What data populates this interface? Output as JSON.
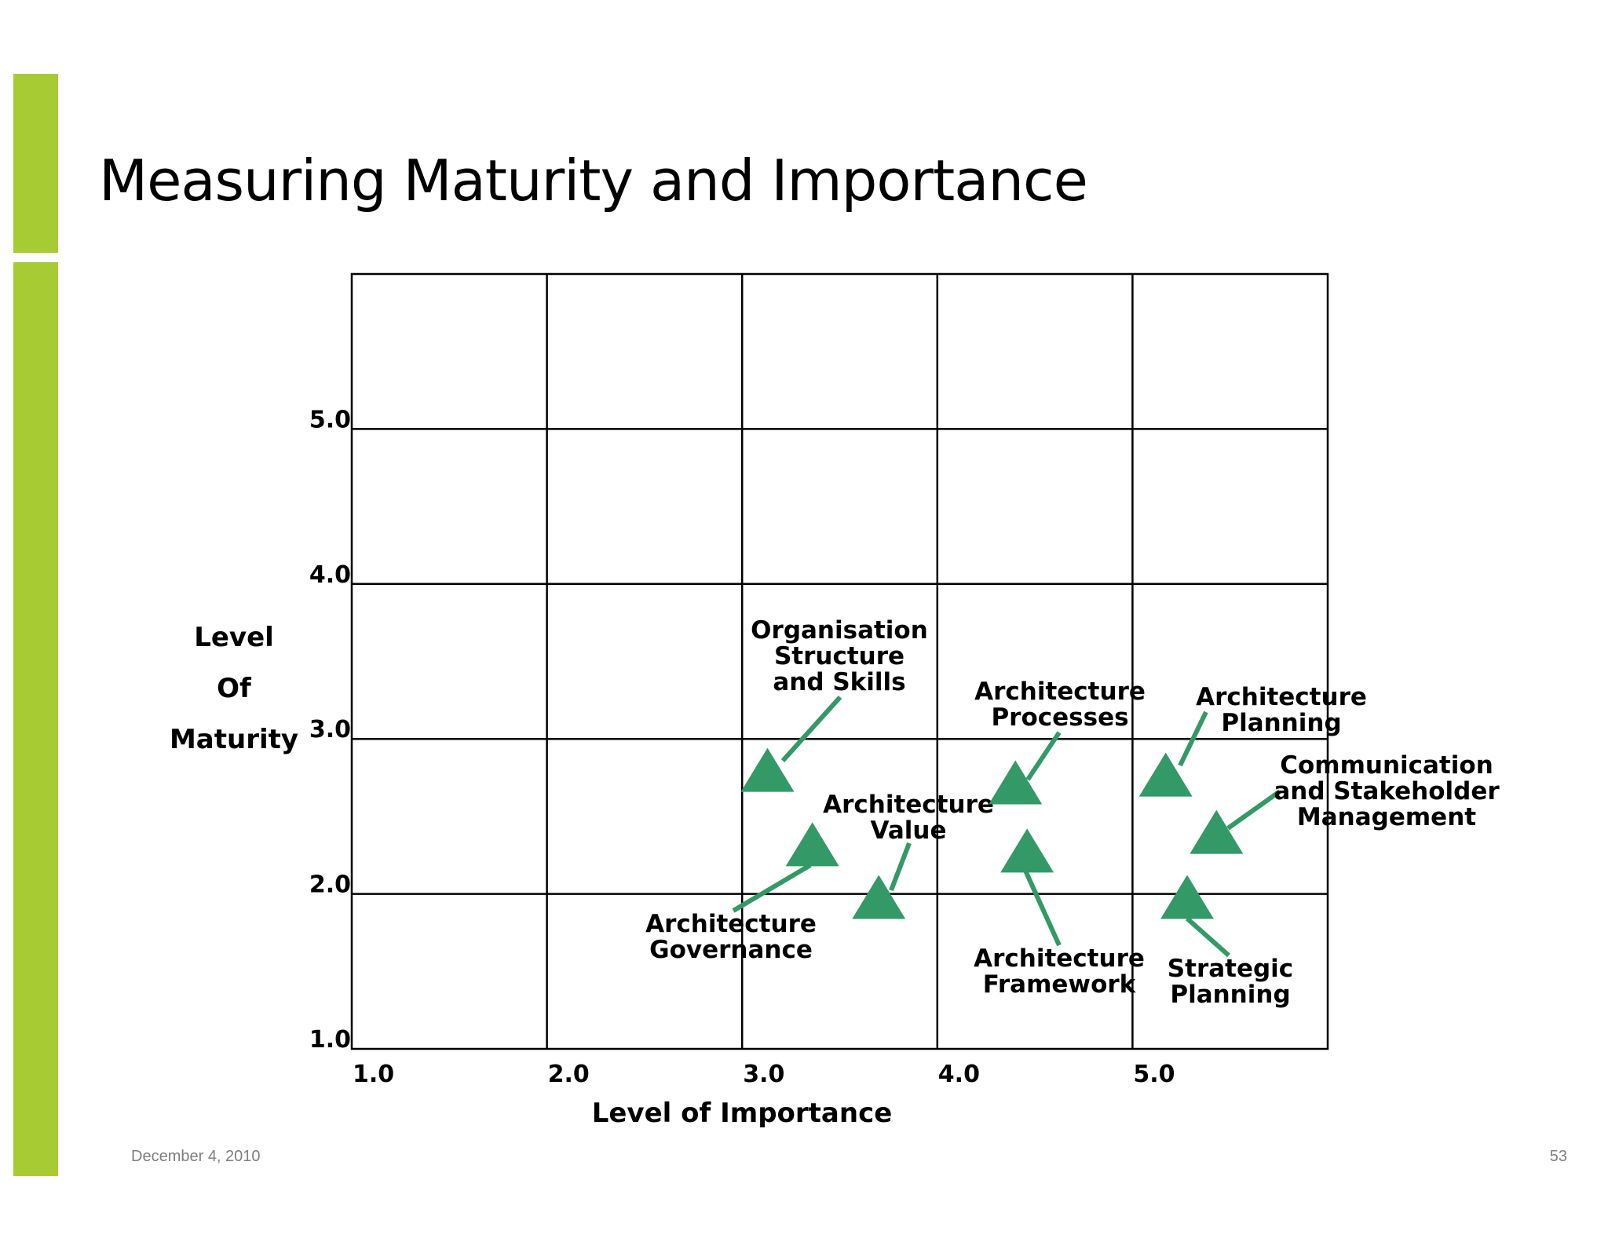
{
  "slide": {
    "title": "Measuring Maturity and Importance",
    "date": "December 4, 2010",
    "page_number": "53",
    "accent_color": "#A6CB33"
  },
  "chart_data": {
    "type": "scatter",
    "marker": "triangle-icon",
    "marker_color": "#339966",
    "xlabel": "Level of Importance",
    "ylabel": [
      "Level",
      "Of",
      "Maturity"
    ],
    "xlim": [
      1.0,
      6.0
    ],
    "ylim": [
      1.0,
      6.0
    ],
    "grid": true,
    "x_ticks": [
      "1.0",
      "2.0",
      "3.0",
      "4.0",
      "5.0"
    ],
    "y_ticks": [
      "1.0",
      "2.0",
      "3.0",
      "4.0",
      "5.0"
    ],
    "points": [
      {
        "label": [
          "Organisation",
          "Structure",
          "and Skills"
        ],
        "x": 3.13,
        "y": 2.8
      },
      {
        "label": [
          "Architecture",
          "Value"
        ],
        "x": 3.7,
        "y": 1.98
      },
      {
        "label": [
          "Architecture",
          "Governance"
        ],
        "x": 3.36,
        "y": 2.32
      },
      {
        "label": [
          "Architecture",
          "Processes"
        ],
        "x": 4.4,
        "y": 2.72
      },
      {
        "label": [
          "Architecture",
          "Framework"
        ],
        "x": 4.46,
        "y": 2.28
      },
      {
        "label": [
          "Architecture",
          "Planning"
        ],
        "x": 5.17,
        "y": 2.77
      },
      {
        "label": [
          "Communication",
          "and Stakeholder",
          "Management"
        ],
        "x": 5.43,
        "y": 2.4
      },
      {
        "label": [
          "Strategic",
          "Planning"
        ],
        "x": 5.28,
        "y": 1.98
      }
    ]
  }
}
